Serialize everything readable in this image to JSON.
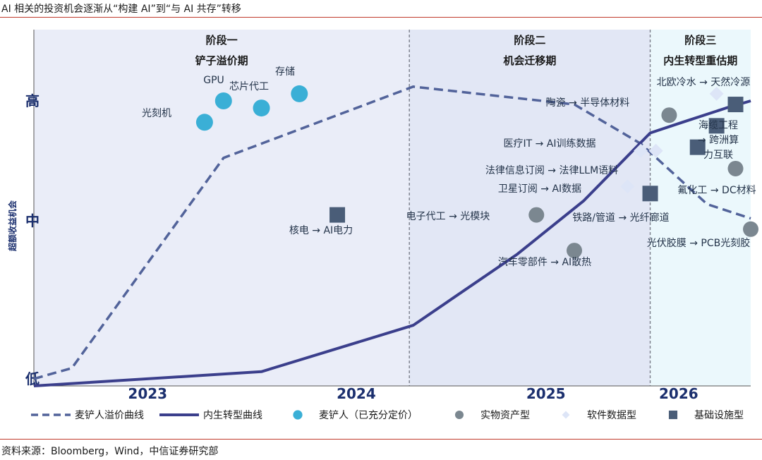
{
  "header": {
    "title": "AI 相关的投资机会逐渐从“构建 AI”到“与 AI 共存”转移"
  },
  "footer": {
    "source": "资料来源：Bloomberg，Wind，中信证券研究部"
  },
  "colors": {
    "shovel_curve": "#52639a",
    "endogenous_curve": "#3b3f8c",
    "shovel": "#3aafd6",
    "physical": "#7b8790",
    "software": "#dde5f7",
    "infra": "#4a5d78",
    "stage1_bg": "#eaedf8",
    "stage2_bg": "#e2e7f5",
    "stage3_bg": "#ebf8fc"
  },
  "chart_data": {
    "type": "scatter",
    "ylabel": "超额收益机会",
    "y_ticks": [
      "低",
      "中",
      "高"
    ],
    "x_ticks": [
      {
        "label": "2023",
        "x": 2023.25
      },
      {
        "label": "2024",
        "x": 2024.35
      },
      {
        "label": "2025",
        "x": 2025.35
      },
      {
        "label": "2026",
        "x": 2026.05
      }
    ],
    "xlim": [
      2022.65,
      2026.43
    ],
    "ylim": [
      0,
      100
    ],
    "stages": [
      {
        "line1": "阶段一",
        "line2": "铲子溢价期",
        "x_start": 2022.65,
        "x_end": 2024.63
      },
      {
        "line1": "阶段二",
        "line2": "机会迁移期",
        "x_start": 2024.63,
        "x_end": 2025.9
      },
      {
        "line1": "阶段三",
        "line2": "内生转型重估期",
        "x_start": 2025.9,
        "x_end": 2026.43
      }
    ],
    "series": [
      {
        "name": "麦铲人溢价曲线",
        "style": "dashed",
        "points": [
          [
            2022.65,
            2
          ],
          [
            2022.85,
            5
          ],
          [
            2023.65,
            64
          ],
          [
            2024.65,
            84
          ],
          [
            2025.5,
            79
          ],
          [
            2025.85,
            68
          ],
          [
            2026.2,
            51
          ],
          [
            2026.43,
            47
          ]
        ]
      },
      {
        "name": "内生转型曲线",
        "style": "solid",
        "points": [
          [
            2022.65,
            0
          ],
          [
            2023.85,
            4
          ],
          [
            2024.65,
            17
          ],
          [
            2025.2,
            37
          ],
          [
            2025.55,
            52
          ],
          [
            2025.9,
            71
          ],
          [
            2026.07,
            74
          ],
          [
            2026.3,
            78
          ],
          [
            2026.43,
            80
          ]
        ]
      }
    ],
    "legend": [
      {
        "label": "麦铲人溢价曲线",
        "kind": "dashed"
      },
      {
        "label": "内生转型曲线",
        "kind": "solid"
      },
      {
        "label": "麦铲人（已充分定价）",
        "kind": "shovel"
      },
      {
        "label": "实物资产型",
        "kind": "physical"
      },
      {
        "label": "软件数据型",
        "kind": "software"
      },
      {
        "label": "基础设施型",
        "kind": "infra"
      }
    ],
    "points": [
      {
        "label": "光刻机",
        "kind": "shovel",
        "x": 2023.55,
        "y": 74
      },
      {
        "label": "GPU",
        "kind": "shovel",
        "x": 2023.65,
        "y": 80
      },
      {
        "label": "芯片代工",
        "kind": "shovel",
        "x": 2023.85,
        "y": 78
      },
      {
        "label": "存储",
        "kind": "shovel",
        "x": 2024.05,
        "y": 82
      },
      {
        "label": "核电 → AI电力",
        "kind": "infra",
        "x": 2024.25,
        "y": 48
      },
      {
        "label": "电子代工 → 光模块",
        "kind": "physical",
        "x": 2025.3,
        "y": 48
      },
      {
        "label": "汽车零部件 → AI散热",
        "kind": "physical",
        "x": 2025.5,
        "y": 38
      },
      {
        "label": "卫星订阅 → AI数据",
        "kind": "software",
        "x": 2025.78,
        "y": 56
      },
      {
        "label": "法律信息订阅 → 法律LLM语料",
        "kind": "software",
        "x": 2025.85,
        "y": 66
      },
      {
        "label": "医疗IT → AI训练数据",
        "kind": "software",
        "x": 2025.93,
        "y": 66
      },
      {
        "label": "陶瓷 → 半导体材料",
        "kind": "physical",
        "x": 2026.0,
        "y": 76
      },
      {
        "label": "北欧冷水 → 天然冷源",
        "kind": "software",
        "x": 2026.25,
        "y": 82
      },
      {
        "label": "铁路/管道 → 光纤廊道",
        "kind": "infra",
        "x": 2025.9,
        "y": 54
      },
      {
        "label": "海缆工程 → 跨洲算力互联",
        "kind": "infra",
        "x": 2026.35,
        "y": 79
      },
      {
        "label": "",
        "kind": "infra",
        "x": 2026.25,
        "y": 73
      },
      {
        "label": "",
        "kind": "infra",
        "x": 2026.15,
        "y": 67
      },
      {
        "label": "氟化工 → DC材料",
        "kind": "physical",
        "x": 2026.35,
        "y": 61
      },
      {
        "label": "光伏胶膜 → PCB光刻胶",
        "kind": "physical",
        "x": 2026.43,
        "y": 44
      }
    ]
  }
}
